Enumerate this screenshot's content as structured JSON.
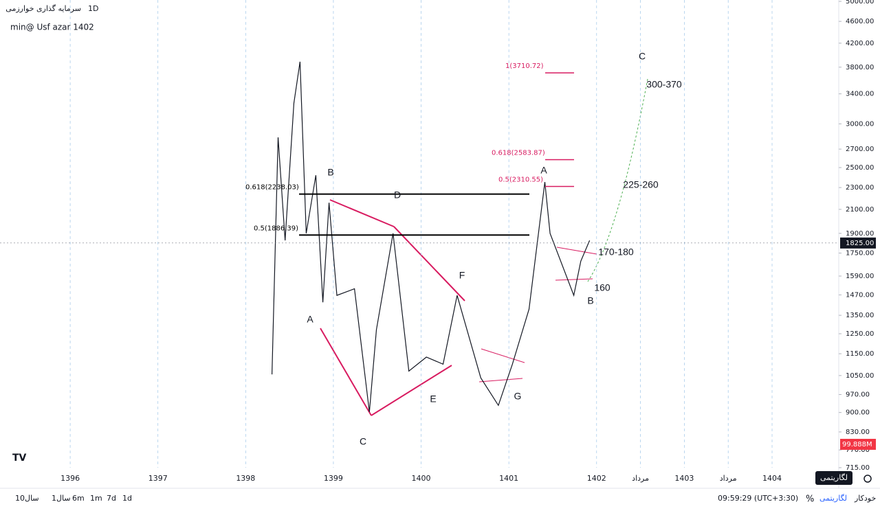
{
  "header": {
    "symbol": "سرمایه گذاری خوارزمی",
    "interval": "1D",
    "note": "min@ Usf  azar 1402"
  },
  "chart_data": {
    "type": "line",
    "log_scale": true,
    "color": "#131722",
    "x": [
      1398.3,
      1398.37,
      1398.45,
      1398.55,
      1398.62,
      1398.69,
      1398.8,
      1398.88,
      1398.95,
      1399.04,
      1399.24,
      1399.41,
      1399.49,
      1399.68,
      1399.86,
      1400.06,
      1400.25,
      1400.41,
      1400.68,
      1400.88,
      1401.04,
      1401.23,
      1401.41,
      1401.47,
      1401.74,
      1401.82,
      1401.92
    ],
    "values": [
      1055,
      2836,
      1845,
      3272,
      3887,
      1900,
      2421,
      1425,
      2159,
      1467,
      1508,
      902,
      1271,
      1900,
      1070,
      1134,
      1101,
      1467,
      1040,
      927,
      1101,
      1385,
      2353,
      1900,
      1467,
      1692,
      1845
    ],
    "xlim": [
      1395.2,
      1404.76
    ],
    "xticks": [
      1396,
      1397,
      1398,
      1399,
      1400,
      1401,
      1402,
      {
        "value": 1402.5,
        "label": "مرداد"
      },
      1403,
      {
        "value": 1403.5,
        "label": "مرداد"
      },
      1404
    ],
    "ylim": [
      715,
      5000
    ],
    "yticks": [
      {
        "value": 715,
        "label": "715.00"
      },
      {
        "value": 770,
        "label": "770.00"
      },
      {
        "value": 830,
        "label": "830.00"
      },
      {
        "value": 900,
        "label": "900.00"
      },
      {
        "value": 970,
        "label": "970.00"
      },
      {
        "value": 1050,
        "label": "1050.00"
      },
      {
        "value": 1150,
        "label": "1150.00"
      },
      {
        "value": 1250,
        "label": "1250.00"
      },
      {
        "value": 1350,
        "label": "1350.00"
      },
      {
        "value": 1470,
        "label": "1470.00"
      },
      {
        "value": 1590,
        "label": "1590.00"
      },
      {
        "value": 1750,
        "label": "1750.00"
      },
      {
        "value": 1900,
        "label": "1900.00"
      },
      {
        "value": 2100,
        "label": "2100.00"
      },
      {
        "value": 2300,
        "label": "2300.00"
      },
      {
        "value": 2500,
        "label": "2500.00"
      },
      {
        "value": 2700,
        "label": "2700.00"
      },
      {
        "value": 3000,
        "label": "3000.00"
      },
      {
        "value": 3400,
        "label": "3400.00"
      },
      {
        "value": 3800,
        "label": "3800.00"
      },
      {
        "value": 4200,
        "label": "4200.00"
      },
      {
        "value": 4600,
        "label": "4600.00"
      },
      {
        "value": 5000,
        "label": "5000.00"
      }
    ],
    "last_price": {
      "value": 1825,
      "label": "1825.00"
    },
    "volume_label": "99.888M",
    "fib_levels": [
      {
        "value": 2238.03,
        "label": "0.618(2238.03)",
        "color": "#000000"
      },
      {
        "value": 1886.39,
        "label": "0.5(1886.39)",
        "color": "#000000"
      },
      {
        "value": 3710.72,
        "label": "1(3710.72)",
        "color": "#d81b60"
      },
      {
        "value": 2583.87,
        "label": "0.618(2583.87)",
        "color": "#d81b60"
      },
      {
        "value": 2310.55,
        "label": "0.5(2310.55)",
        "color": "#d81b60"
      }
    ],
    "wave_labels": [
      "B",
      "A",
      "C",
      "D",
      "E",
      "F",
      "G",
      "A",
      "B",
      "C",
      "300-370",
      "225-260",
      "170-180",
      "160"
    ]
  },
  "toolbar": {
    "ranges": [
      "10سال",
      "1سال",
      "6m",
      "1m",
      "7d",
      "1d"
    ],
    "time": "09:59:29 (UTC+3:30)",
    "percent": "%",
    "log": "لگاریتمی",
    "auto": "خودکار",
    "tooltip": "لگاریتمی"
  }
}
